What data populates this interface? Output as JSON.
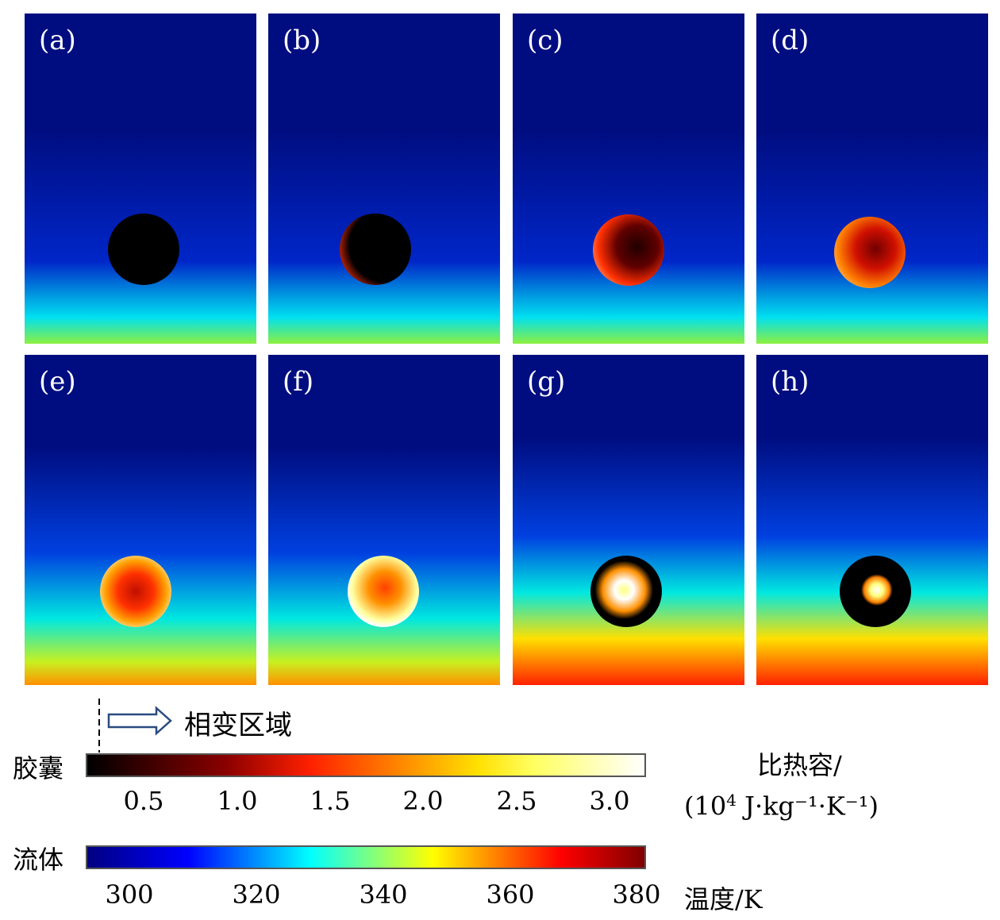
{
  "panels": [
    {
      "label": "(a)"
    },
    {
      "label": "(b)"
    },
    {
      "label": "(c)"
    },
    {
      "label": "(d)"
    },
    {
      "label": "(e)"
    },
    {
      "label": "(f)"
    },
    {
      "label": "(g)"
    },
    {
      "label": "(h)"
    }
  ],
  "phase_change_label": "相变区域",
  "capsule_colorbar": {
    "side_label": "胶囊",
    "ticks": [
      "0.5",
      "1.0",
      "1.5",
      "2.0",
      "2.5",
      "3.0"
    ],
    "title_line1": "比热容/",
    "title_line2_prefix": "(10",
    "title_line2_exp": "4",
    "title_line2_suffix": " J·kg⁻¹·K⁻¹)",
    "colors": [
      "#000000",
      "#8b0000",
      "#ff2000",
      "#ff8000",
      "#ffe000",
      "#ffff60",
      "#ffffff"
    ]
  },
  "fluid_colorbar": {
    "side_label": "流体",
    "ticks": [
      "300",
      "320",
      "340",
      "360",
      "380"
    ],
    "title": "温度/K",
    "colors": [
      "#000080",
      "#0000ff",
      "#00ffff",
      "#ffff00",
      "#ff0000",
      "#800000"
    ]
  }
}
